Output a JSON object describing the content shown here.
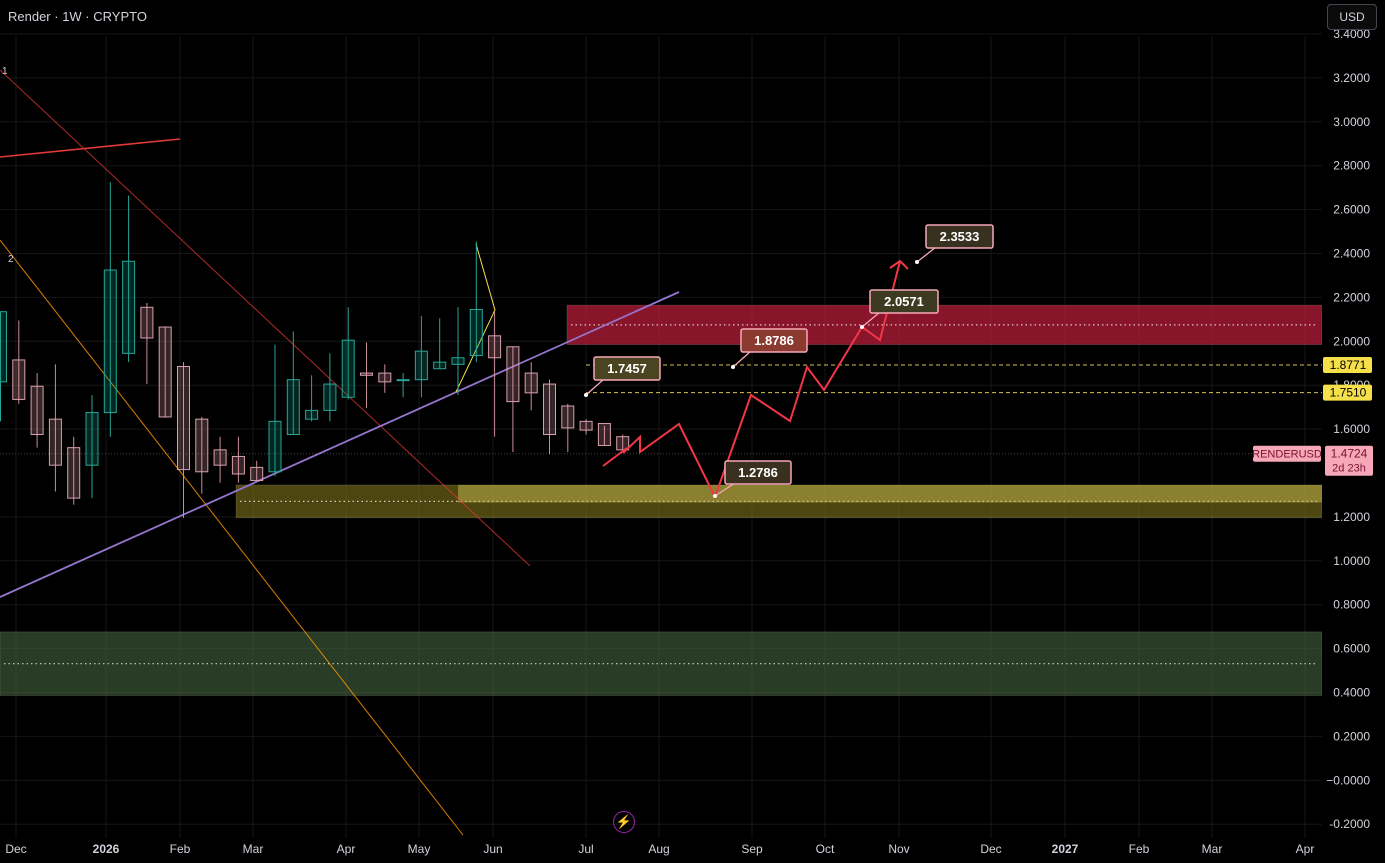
{
  "header": {
    "title": "Render · 1W · CRYPTO"
  },
  "currency_button": {
    "label": "USD"
  },
  "colors": {
    "background": "#000000",
    "bull": "#089981",
    "bear": "#f7a8b8",
    "resistance_zone": "#b71c3a",
    "support_zone": "#b5a42a",
    "demand_zone": "#4f7a4a",
    "projection": "#f23645",
    "trendline": "#9575cd",
    "fib_line": "#ff9800",
    "channel_line": "#e53935"
  },
  "chart_data": {
    "type": "candlestick",
    "symbol": "RENDERUSD",
    "timeframe": "1W",
    "y_ticks": [
      "3.4000",
      "3.2000",
      "3.0000",
      "2.8000",
      "2.6000",
      "2.4000",
      "2.2000",
      "2.0000",
      "1.8000",
      "1.6000",
      "1.2000",
      "1.0000",
      "0.8000",
      "0.6000",
      "0.4000",
      "0.2000",
      "−0.0000",
      "-0.2000"
    ],
    "x_ticks": [
      "Dec",
      "2026",
      "Feb",
      "Mar",
      "Apr",
      "May",
      "Jun",
      "Jul",
      "Aug",
      "Sep",
      "Oct",
      "Nov",
      "Dec",
      "2027",
      "Feb",
      "Mar",
      "Apr"
    ],
    "ylim": [
      -0.25,
      3.45
    ],
    "grid": true,
    "candles": [
      {
        "o": 1.8,
        "h": 2.12,
        "l": 1.62,
        "c": 2.12
      },
      {
        "o": 1.9,
        "h": 2.08,
        "l": 1.7,
        "c": 1.72
      },
      {
        "o": 1.78,
        "h": 1.84,
        "l": 1.5,
        "c": 1.56
      },
      {
        "o": 1.63,
        "h": 1.88,
        "l": 1.3,
        "c": 1.42
      },
      {
        "o": 1.5,
        "h": 1.55,
        "l": 1.24,
        "c": 1.27
      },
      {
        "o": 1.42,
        "h": 1.74,
        "l": 1.27,
        "c": 1.66
      },
      {
        "o": 1.66,
        "h": 2.71,
        "l": 1.55,
        "c": 2.31
      },
      {
        "o": 1.93,
        "h": 2.65,
        "l": 1.89,
        "c": 2.35
      },
      {
        "o": 2.14,
        "h": 2.16,
        "l": 1.79,
        "c": 2.0
      },
      {
        "o": 2.05,
        "h": 2.05,
        "l": 1.64,
        "c": 1.64
      },
      {
        "o": 1.87,
        "h": 1.89,
        "l": 1.18,
        "c": 1.4
      },
      {
        "o": 1.63,
        "h": 1.64,
        "l": 1.29,
        "c": 1.39
      },
      {
        "o": 1.49,
        "h": 1.55,
        "l": 1.34,
        "c": 1.42
      },
      {
        "o": 1.46,
        "h": 1.55,
        "l": 1.34,
        "c": 1.38
      },
      {
        "o": 1.41,
        "h": 1.44,
        "l": 1.35,
        "c": 1.35
      },
      {
        "o": 1.39,
        "h": 1.97,
        "l": 1.37,
        "c": 1.62
      },
      {
        "o": 1.56,
        "h": 2.03,
        "l": 1.56,
        "c": 1.81
      },
      {
        "o": 1.63,
        "h": 1.83,
        "l": 1.62,
        "c": 1.67
      },
      {
        "o": 1.67,
        "h": 1.93,
        "l": 1.62,
        "c": 1.79
      },
      {
        "o": 1.73,
        "h": 2.14,
        "l": 1.72,
        "c": 1.99
      },
      {
        "o": 1.84,
        "h": 1.98,
        "l": 1.68,
        "c": 1.83
      },
      {
        "o": 1.84,
        "h": 1.88,
        "l": 1.75,
        "c": 1.8
      },
      {
        "o": 1.81,
        "h": 1.84,
        "l": 1.73,
        "c": 1.81
      },
      {
        "o": 1.81,
        "h": 2.1,
        "l": 1.73,
        "c": 1.94
      },
      {
        "o": 1.86,
        "h": 2.09,
        "l": 1.86,
        "c": 1.89
      },
      {
        "o": 1.88,
        "h": 2.14,
        "l": 1.74,
        "c": 1.91
      },
      {
        "o": 1.92,
        "h": 2.44,
        "l": 1.89,
        "c": 2.13
      },
      {
        "o": 2.01,
        "h": 2.12,
        "l": 1.55,
        "c": 1.91
      },
      {
        "o": 1.96,
        "h": 1.96,
        "l": 1.48,
        "c": 1.71
      },
      {
        "o": 1.84,
        "h": 1.89,
        "l": 1.67,
        "c": 1.75
      },
      {
        "o": 1.79,
        "h": 1.81,
        "l": 1.47,
        "c": 1.56
      },
      {
        "o": 1.69,
        "h": 1.7,
        "l": 1.48,
        "c": 1.59
      },
      {
        "o": 1.62,
        "h": 1.63,
        "l": 1.56,
        "c": 1.58
      },
      {
        "o": 1.61,
        "h": 1.6,
        "l": 1.51,
        "c": 1.51
      },
      {
        "o": 1.55,
        "h": 1.56,
        "l": 1.48,
        "c": 1.49
      }
    ],
    "zones": [
      {
        "name": "resistance",
        "from": 1.97,
        "to": 2.15
      },
      {
        "name": "support",
        "from": 1.18,
        "to": 1.33
      },
      {
        "name": "demand",
        "from": 0.37,
        "to": 0.66
      }
    ],
    "price_labels": [
      {
        "text": "1.8771",
        "value": 1.8771,
        "kind": "level"
      },
      {
        "text": "1.7510",
        "value": 1.751,
        "kind": "level"
      },
      {
        "text": "RENDERUSD",
        "value": 1.4724,
        "kind": "symbol"
      },
      {
        "text": "1.4724",
        "value": 1.4724,
        "kind": "last"
      },
      {
        "text": "2d 23h",
        "value": 1.4724,
        "kind": "countdown"
      }
    ],
    "annotations": [
      {
        "text": "1.7457",
        "value": 1.7457
      },
      {
        "text": "1.8786",
        "value": 1.8786
      },
      {
        "text": "2.0571",
        "value": 2.0571
      },
      {
        "text": "2.3533",
        "value": 2.3533
      },
      {
        "text": "1.2786",
        "value": 1.2786
      }
    ],
    "fib_labels": [
      "1",
      "2"
    ]
  }
}
